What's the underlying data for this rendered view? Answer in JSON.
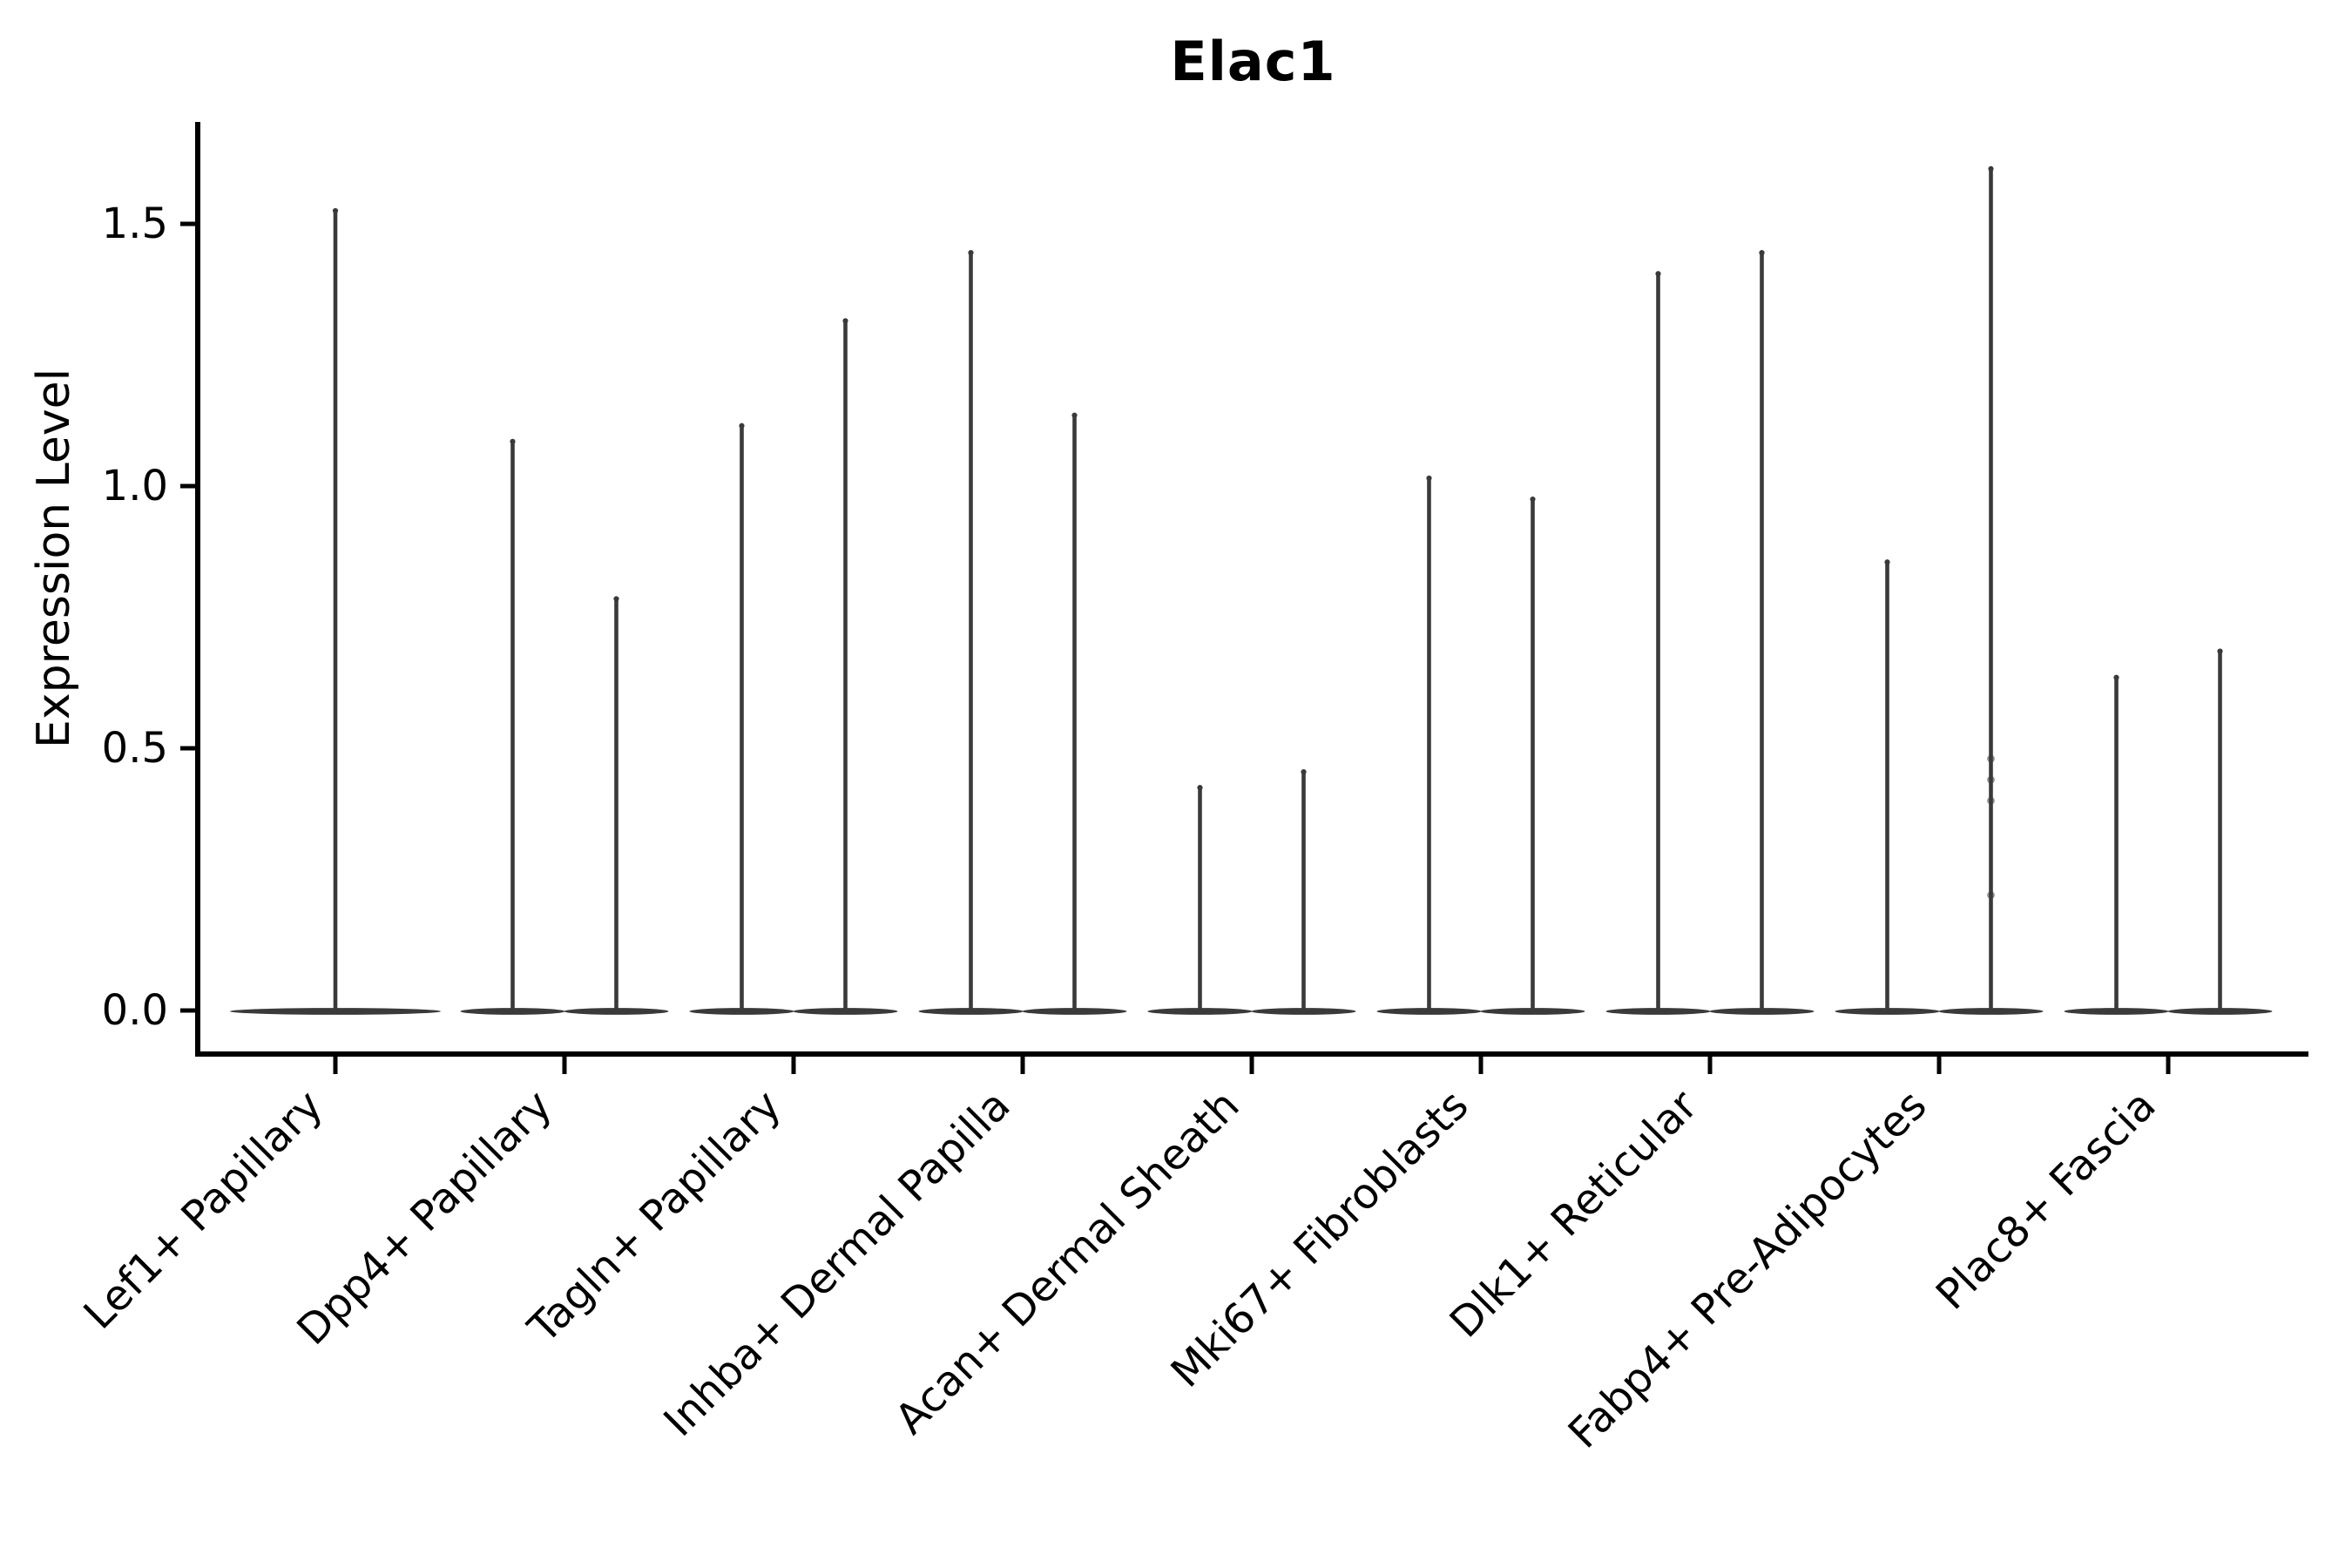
{
  "chart_data": {
    "type": "violin",
    "title": "Elac1",
    "ylabel": "Expression Level",
    "xlabel": "",
    "ytick_labels": [
      "0.0",
      "0.5",
      "1.0",
      "1.5"
    ],
    "ytick_values": [
      0.0,
      0.5,
      1.0,
      1.5
    ],
    "ylim": [
      -0.08,
      1.7
    ],
    "grid": false,
    "legend_position": "none",
    "categories": [
      "Lef1+ Papillary",
      "Dpp4+ Papillary",
      "Tagln+ Papillary",
      "Inhba+ Dermal Papilla",
      "Acan+ Dermal Sheath",
      "Mki67+ Fibroblasts",
      "Dlk1+ Reticular",
      "Fabp4+ Pre-Adipocytes",
      "Plac8+ Fascia"
    ],
    "violins": [
      {
        "category": "Lef1+ Papillary",
        "maxima": [
          1.53
        ]
      },
      {
        "category": "Dpp4+ Papillary",
        "maxima": [
          1.09,
          0.79
        ]
      },
      {
        "category": "Tagln+ Papillary",
        "maxima": [
          1.12,
          1.32
        ]
      },
      {
        "category": "Inhba+ Dermal Papilla",
        "maxima": [
          1.45,
          1.14
        ]
      },
      {
        "category": "Acan+ Dermal Sheath",
        "maxima": [
          0.43,
          0.46
        ]
      },
      {
        "category": "Mki67+ Fibroblasts",
        "maxima": [
          1.02,
          0.98
        ]
      },
      {
        "category": "Dlk1+ Reticular",
        "maxima": [
          1.41,
          1.45
        ]
      },
      {
        "category": "Fabp4+ Pre-Adipocytes",
        "maxima": [
          0.86,
          1.61
        ],
        "jitter_points": [
          {
            "violin": 1,
            "value": 0.48
          },
          {
            "violin": 1,
            "value": 0.44
          },
          {
            "violin": 1,
            "value": 0.4
          },
          {
            "violin": 1,
            "value": 0.22
          }
        ]
      },
      {
        "category": "Plac8+ Fascia",
        "maxima": [
          0.64,
          0.69
        ]
      }
    ],
    "description": "Violin plot of Elac1 expression; each violin is a flat wide base at 0 with a thin spike up to its maximum. Categories with two violins are split side-by-side; Lef1+ Papillary has a single full-width violin.",
    "colors": {
      "violin_fill": "#3a3a3a",
      "violin_stroke": "#2e2e2e",
      "axis": "#000000",
      "text": "#000000",
      "background": "#ffffff"
    }
  }
}
